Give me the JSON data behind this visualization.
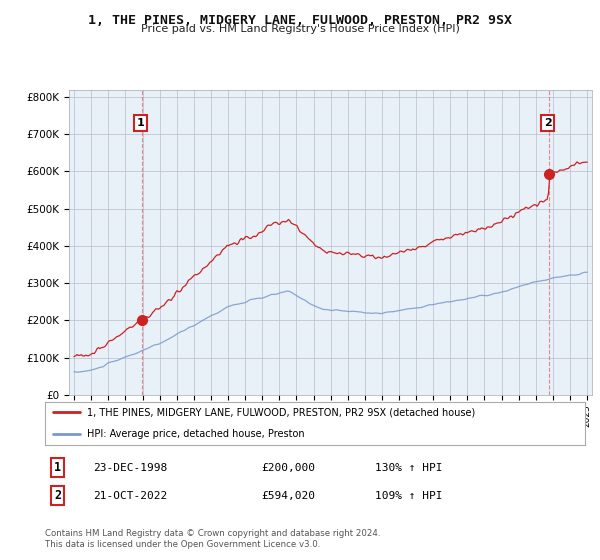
{
  "title": "1, THE PINES, MIDGERY LANE, FULWOOD, PRESTON, PR2 9SX",
  "subtitle": "Price paid vs. HM Land Registry's House Price Index (HPI)",
  "ylim": [
    0,
    820000
  ],
  "yticks": [
    0,
    100000,
    200000,
    300000,
    400000,
    500000,
    600000,
    700000,
    800000
  ],
  "ytick_labels": [
    "£0",
    "£100K",
    "£200K",
    "£300K",
    "£400K",
    "£500K",
    "£600K",
    "£700K",
    "£800K"
  ],
  "red_line_color": "#cc2222",
  "blue_line_color": "#7799cc",
  "chart_bg_color": "#e8f0f8",
  "point1_x": 1998.97,
  "point1_y": 200000,
  "point2_x": 2022.8,
  "point2_y": 594020,
  "legend_red": "1, THE PINES, MIDGERY LANE, FULWOOD, PRESTON, PR2 9SX (detached house)",
  "legend_blue": "HPI: Average price, detached house, Preston",
  "table_row1": [
    "1",
    "23-DEC-1998",
    "£200,000",
    "130% ↑ HPI"
  ],
  "table_row2": [
    "2",
    "21-OCT-2022",
    "£594,020",
    "109% ↑ HPI"
  ],
  "footer": "Contains HM Land Registry data © Crown copyright and database right 2024.\nThis data is licensed under the Open Government Licence v3.0.",
  "background_color": "#ffffff",
  "grid_color": "#bbbbcc",
  "xlim_left": 1994.7,
  "xlim_right": 2025.3
}
